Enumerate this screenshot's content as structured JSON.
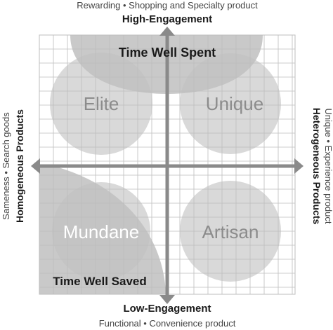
{
  "axes": {
    "top": {
      "subtitle": "Rewarding • Shopping and Specialty product",
      "title": "High-Engagement"
    },
    "bottom": {
      "title": "Low-Engagement",
      "subtitle": "Functional • Convenience product"
    },
    "left": {
      "title": "Homogeneous Products",
      "subtitle": "Sameness • Search goods"
    },
    "right": {
      "title": "Heterogeneous Products",
      "subtitle": "Unique • Experience product"
    }
  },
  "quadrants": {
    "top_left": "Elite",
    "top_right": "Unique",
    "bottom_left": "Mundane",
    "bottom_right": "Artisan"
  },
  "zones": {
    "top": "Time Well Spent",
    "bottom_left": "Time Well Saved"
  },
  "colors": {
    "grid_line": "#bdbdbd",
    "axis": "#8a8a8a",
    "circle": "#d9d9d9",
    "zone_fill": "#bfbfbf",
    "quadrant_text": "#8c8c8c",
    "mundane_text": "#ffffff",
    "title_text": "#1a1a1a",
    "subtitle_text": "#444444"
  }
}
